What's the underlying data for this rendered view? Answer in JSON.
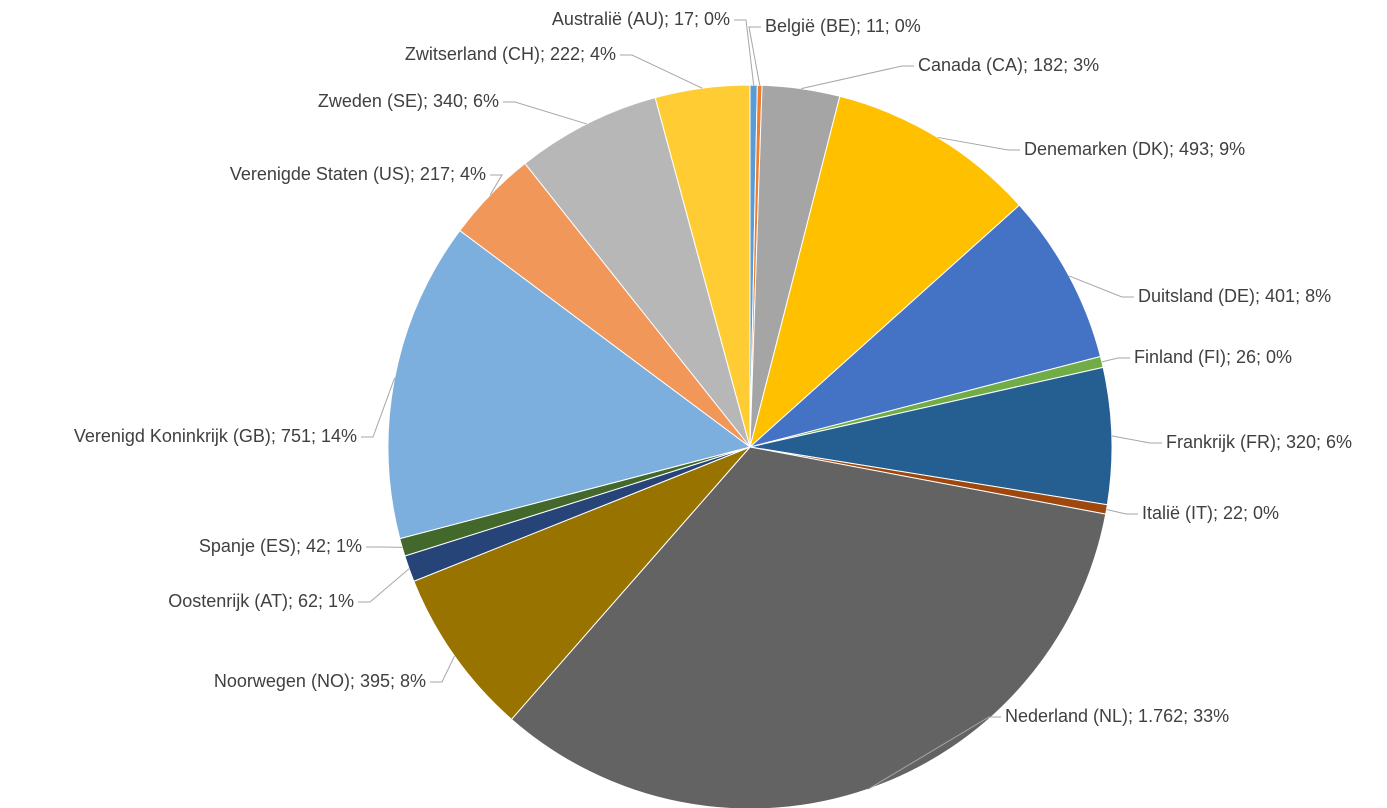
{
  "chart_data": {
    "type": "pie",
    "categories": [
      "Australië (AU); 17; 0%",
      "België (BE); 11; 0%",
      "Canada (CA); 182; 3%",
      "Denemarken (DK); 493; 9%",
      "Duitsland (DE); 401; 8%",
      "Finland (FI); 26; 0%",
      "Frankrijk (FR); 320; 6%",
      "Italië (IT); 22; 0%",
      "Nederland (NL); 1.762; 33%",
      "Noorwegen (NO); 395; 8%",
      "Oostenrijk (AT); 62; 1%",
      "Spanje (ES); 42; 1%",
      "Verenigd Koninkrijk (GB); 751; 14%",
      "Verenigde Staten (US); 217; 4%",
      "Zweden (SE); 340; 6%",
      "Zwitserland (CH); 222; 4%"
    ],
    "values": [
      17,
      11,
      182,
      493,
      401,
      26,
      320,
      22,
      1762,
      395,
      62,
      42,
      751,
      217,
      340,
      222
    ],
    "colors": [
      "#5b9bd5",
      "#ed7d31",
      "#a5a5a5",
      "#ffc000",
      "#4472c4",
      "#70ad47",
      "#255e91",
      "#9e480e",
      "#636363",
      "#997300",
      "#264478",
      "#43682b",
      "#7cafdd",
      "#f1975a",
      "#b7b7b7",
      "#ffcd33"
    ]
  }
}
